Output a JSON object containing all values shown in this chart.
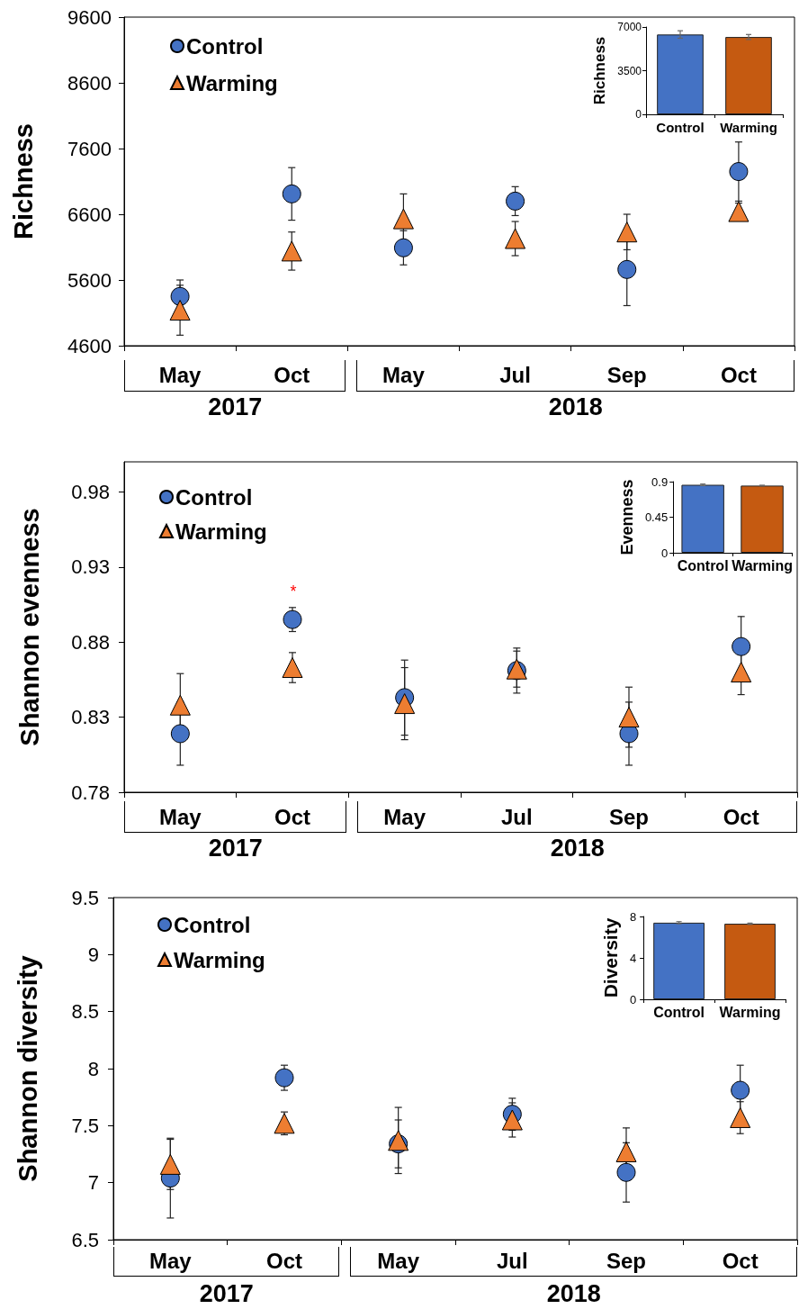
{
  "chart_data": [
    {
      "type": "scatter",
      "ylabel": "Richness",
      "categories": [
        "May",
        "Oct",
        "May",
        "Jul",
        "Sep",
        "Oct"
      ],
      "series": [
        {
          "name": "Control",
          "color": "#4472c4",
          "marker": "circle",
          "values": [
            5350,
            6910,
            6090,
            6800,
            5760,
            7250
          ],
          "errors": [
            250,
            400,
            260,
            220,
            550,
            450
          ]
        },
        {
          "name": "Warming",
          "color": "#ed7d31",
          "marker": "triangle",
          "values": [
            5140,
            6040,
            6530,
            6230,
            6330,
            6640
          ],
          "errors": [
            380,
            290,
            380,
            260,
            270,
            130
          ]
        }
      ],
      "ylim": [
        4600,
        9600
      ],
      "yticks": [
        4600,
        5600,
        6600,
        7600,
        8600,
        9600
      ],
      "legend": "top left",
      "annotations": [
        "2017",
        "2018"
      ]
    },
    {
      "type": "bar",
      "ylabel": "Richness",
      "categories": [
        "Control",
        "Warming"
      ],
      "values": [
        6400,
        6200
      ],
      "colors": [
        "#4472c4",
        "#c55a11"
      ],
      "errors": [
        300,
        200
      ],
      "ylim": [
        0,
        7000
      ],
      "yticks": [
        0,
        3500,
        7000
      ]
    },
    {
      "type": "scatter",
      "ylabel": "Shannon evenness",
      "categories": [
        "May",
        "Oct",
        "May",
        "Jul",
        "Sep",
        "Oct"
      ],
      "series": [
        {
          "name": "Control",
          "color": "#4472c4",
          "marker": "circle",
          "values": [
            0.819,
            0.895,
            0.843,
            0.861,
            0.819,
            0.877
          ],
          "errors": [
            0.021,
            0.008,
            0.025,
            0.015,
            0.021,
            0.02
          ]
        },
        {
          "name": "Warming",
          "color": "#ed7d31",
          "marker": "triangle",
          "values": [
            0.838,
            0.863,
            0.839,
            0.862,
            0.83,
            0.86
          ],
          "errors": [
            0.021,
            0.01,
            0.024,
            0.012,
            0.02,
            0.015
          ]
        }
      ],
      "ylim": [
        0.78,
        1.0
      ],
      "yticks": [
        0.78,
        0.83,
        0.88,
        0.93,
        0.98
      ],
      "legend": "top left",
      "annotations": [
        "*",
        "2017",
        "2018"
      ]
    },
    {
      "type": "bar",
      "ylabel": "Evenness",
      "categories": [
        "Control",
        "Warming"
      ],
      "values": [
        0.86,
        0.85
      ],
      "colors": [
        "#4472c4",
        "#c55a11"
      ],
      "errors": [
        0.01,
        0.005
      ],
      "ylim": [
        0,
        0.9
      ],
      "yticks": [
        0,
        0.45,
        0.9
      ]
    },
    {
      "type": "scatter",
      "ylabel": "Shannon diversity",
      "categories": [
        "May",
        "Oct",
        "May",
        "Jul",
        "Sep",
        "Oct"
      ],
      "series": [
        {
          "name": "Control",
          "color": "#4472c4",
          "marker": "circle",
          "values": [
            7.04,
            7.92,
            7.34,
            7.6,
            7.09,
            7.81
          ],
          "errors": [
            0.35,
            0.11,
            0.21,
            0.14,
            0.26,
            0.22
          ]
        },
        {
          "name": "Warming",
          "color": "#ed7d31",
          "marker": "triangle",
          "values": [
            7.16,
            7.52,
            7.37,
            7.55,
            7.27,
            7.57
          ],
          "errors": [
            0.22,
            0.1,
            0.29,
            0.15,
            0.21,
            0.14
          ]
        }
      ],
      "ylim": [
        6.5,
        9.5
      ],
      "yticks": [
        6.5,
        7,
        7.5,
        8,
        8.5,
        9,
        9.5
      ],
      "legend": "top left",
      "annotations": [
        "2017",
        "2018"
      ]
    },
    {
      "type": "bar",
      "ylabel": "Diversity",
      "categories": [
        "Control",
        "Warming"
      ],
      "values": [
        7.4,
        7.3
      ],
      "colors": [
        "#4472c4",
        "#c55a11"
      ],
      "errors": [
        0.1,
        0.06
      ],
      "ylim": [
        0,
        8
      ],
      "yticks": [
        0,
        4,
        8
      ]
    }
  ]
}
